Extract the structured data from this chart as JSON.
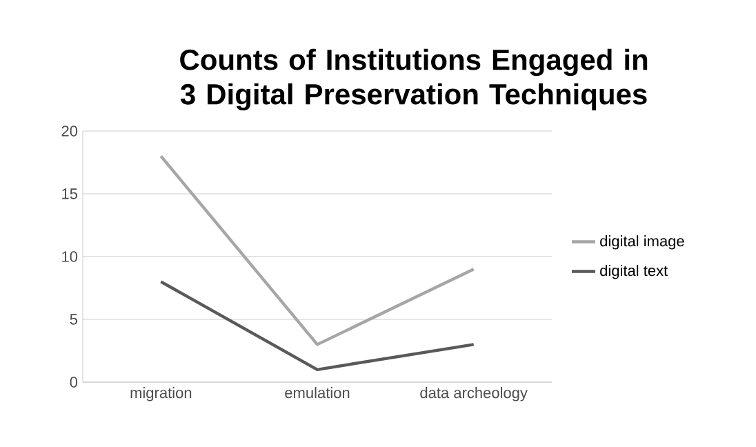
{
  "chart_data": {
    "type": "line",
    "title": "Counts of Institutions Engaged in 3 Digital Preservation Techniques",
    "categories": [
      "migration",
      "emulation",
      "data archeology"
    ],
    "series": [
      {
        "name": "digital image",
        "color": "#a6a6a6",
        "values": [
          18,
          3,
          9
        ]
      },
      {
        "name": "digital text",
        "color": "#595959",
        "values": [
          8,
          1,
          3
        ]
      }
    ],
    "ylim": [
      0,
      20
    ],
    "yticks": [
      0,
      5,
      10,
      15,
      20
    ],
    "grid": "y",
    "legend": "right",
    "marker": "none",
    "line_style": "solid"
  }
}
